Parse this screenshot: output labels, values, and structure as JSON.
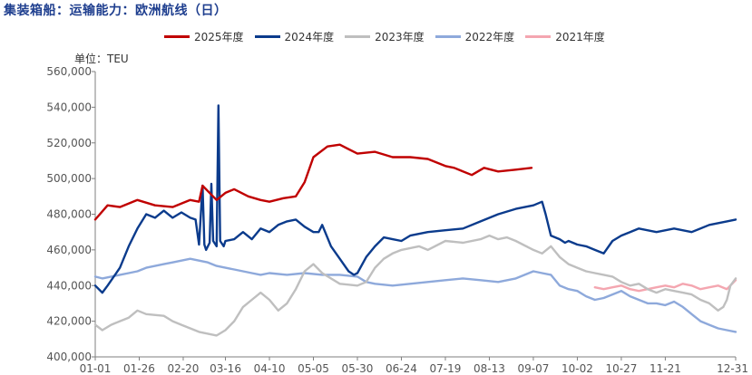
{
  "chart_data": {
    "type": "line",
    "title": "集装箱船：运输能力：欧洲航线（日）",
    "unit_label": "单位：TEU",
    "x_ticks": [
      "01-01",
      "01-26",
      "02-20",
      "03-16",
      "04-10",
      "05-05",
      "05-30",
      "06-24",
      "07-19",
      "08-13",
      "09-07",
      "10-02",
      "10-27",
      "11-21",
      "12-31"
    ],
    "x_tick_days": [
      1,
      26,
      51,
      75,
      100,
      125,
      150,
      175,
      200,
      225,
      250,
      275,
      300,
      325,
      365
    ],
    "xlim": [
      1,
      365
    ],
    "ylim": [
      400000,
      560000
    ],
    "y_ticks": [
      "400,000",
      "420,000",
      "440,000",
      "460,000",
      "480,000",
      "500,000",
      "520,000",
      "540,000",
      "560,000"
    ],
    "grid": false,
    "legend_position": "top",
    "series": [
      {
        "name": "2025年度",
        "color": "#c00000",
        "x": [
          1,
          8,
          15,
          25,
          35,
          45,
          55,
          60,
          62,
          70,
          75,
          80,
          88,
          95,
          100,
          108,
          115,
          120,
          125,
          133,
          140,
          150,
          160,
          170,
          180,
          190,
          200,
          205,
          215,
          222,
          230,
          240,
          249
        ],
        "values": [
          477000,
          485000,
          484000,
          488000,
          485000,
          484000,
          488000,
          487000,
          496000,
          488000,
          492000,
          494000,
          490000,
          488000,
          487000,
          489000,
          490000,
          498000,
          512000,
          518000,
          519000,
          514000,
          515000,
          512000,
          512000,
          511000,
          507000,
          506000,
          502000,
          506000,
          504000,
          505000,
          506000
        ]
      },
      {
        "name": "2024年度",
        "color": "#0b3b8c",
        "x": [
          1,
          5,
          8,
          15,
          20,
          25,
          30,
          35,
          40,
          45,
          50,
          55,
          58,
          59,
          60,
          62,
          63,
          64,
          66,
          67,
          68,
          70,
          71,
          72,
          74,
          75,
          80,
          85,
          90,
          95,
          100,
          105,
          110,
          115,
          120,
          125,
          128,
          130,
          135,
          140,
          145,
          148,
          150,
          155,
          160,
          165,
          170,
          175,
          180,
          190,
          200,
          210,
          220,
          230,
          240,
          250,
          255,
          257,
          260,
          265,
          268,
          270,
          275,
          280,
          285,
          290,
          295,
          300,
          305,
          310,
          320,
          330,
          340,
          350,
          360,
          365
        ],
        "values": [
          440000,
          436000,
          440000,
          450000,
          462000,
          472000,
          480000,
          478000,
          482000,
          478000,
          481000,
          478000,
          477000,
          470000,
          463000,
          496000,
          463000,
          460000,
          464000,
          497000,
          465000,
          462000,
          541000,
          465000,
          462000,
          465000,
          466000,
          470000,
          466000,
          472000,
          470000,
          474000,
          476000,
          477000,
          473000,
          470000,
          470000,
          474000,
          462000,
          455000,
          448000,
          446000,
          447000,
          456000,
          462000,
          467000,
          466000,
          465000,
          468000,
          470000,
          471000,
          472000,
          476000,
          480000,
          483000,
          485000,
          487000,
          480000,
          468000,
          466000,
          464000,
          465000,
          463000,
          462000,
          460000,
          458000,
          465000,
          468000,
          470000,
          472000,
          470000,
          472000,
          470000,
          474000,
          476000,
          477000
        ]
      },
      {
        "name": "2023年度",
        "color": "#bfbfbf",
        "x": [
          1,
          5,
          10,
          15,
          20,
          25,
          30,
          40,
          45,
          50,
          55,
          60,
          65,
          70,
          75,
          80,
          85,
          90,
          95,
          100,
          105,
          110,
          115,
          120,
          125,
          130,
          140,
          150,
          155,
          160,
          165,
          170,
          175,
          180,
          185,
          190,
          200,
          210,
          220,
          225,
          230,
          235,
          240,
          250,
          255,
          260,
          265,
          270,
          275,
          280,
          285,
          290,
          295,
          300,
          305,
          310,
          315,
          320,
          325,
          330,
          335,
          340,
          345,
          350,
          355,
          358,
          360,
          362,
          365
        ],
        "values": [
          418000,
          415000,
          418000,
          420000,
          422000,
          426000,
          424000,
          423000,
          420000,
          418000,
          416000,
          414000,
          413000,
          412000,
          415000,
          420000,
          428000,
          432000,
          436000,
          432000,
          426000,
          430000,
          438000,
          448000,
          452000,
          447000,
          441000,
          440000,
          442000,
          450000,
          455000,
          458000,
          460000,
          461000,
          462000,
          460000,
          465000,
          464000,
          466000,
          468000,
          466000,
          467000,
          465000,
          460000,
          458000,
          462000,
          456000,
          452000,
          450000,
          448000,
          447000,
          446000,
          445000,
          442000,
          440000,
          441000,
          438000,
          436000,
          438000,
          437000,
          436000,
          435000,
          432000,
          430000,
          426000,
          428000,
          432000,
          440000,
          444000
        ]
      },
      {
        "name": "2022年度",
        "color": "#8ea9db",
        "x": [
          1,
          5,
          10,
          15,
          20,
          25,
          30,
          35,
          40,
          45,
          50,
          55,
          60,
          65,
          70,
          75,
          80,
          85,
          90,
          95,
          100,
          110,
          120,
          130,
          140,
          150,
          155,
          160,
          170,
          180,
          190,
          200,
          210,
          220,
          230,
          240,
          250,
          255,
          260,
          265,
          270,
          275,
          280,
          285,
          290,
          295,
          300,
          305,
          310,
          315,
          320,
          325,
          330,
          335,
          340,
          345,
          350,
          355,
          360,
          365
        ],
        "values": [
          445000,
          444000,
          445000,
          446000,
          447000,
          448000,
          450000,
          451000,
          452000,
          453000,
          454000,
          455000,
          454000,
          453000,
          451000,
          450000,
          449000,
          448000,
          447000,
          446000,
          447000,
          446000,
          447000,
          446000,
          446000,
          445000,
          442000,
          441000,
          440000,
          441000,
          442000,
          443000,
          444000,
          443000,
          442000,
          444000,
          448000,
          447000,
          446000,
          440000,
          438000,
          437000,
          434000,
          432000,
          433000,
          435000,
          437000,
          434000,
          432000,
          430000,
          430000,
          429000,
          431000,
          428000,
          424000,
          420000,
          418000,
          416000,
          415000,
          414000
        ]
      },
      {
        "name": "2021年度",
        "color": "#f4a6b0",
        "x": [
          285,
          290,
          295,
          300,
          305,
          310,
          315,
          320,
          325,
          330,
          335,
          340,
          345,
          350,
          355,
          360,
          365
        ],
        "values": [
          439000,
          438000,
          439000,
          440000,
          438000,
          437000,
          438000,
          439000,
          440000,
          439000,
          441000,
          440000,
          438000,
          439000,
          440000,
          438000,
          443000
        ]
      }
    ]
  }
}
